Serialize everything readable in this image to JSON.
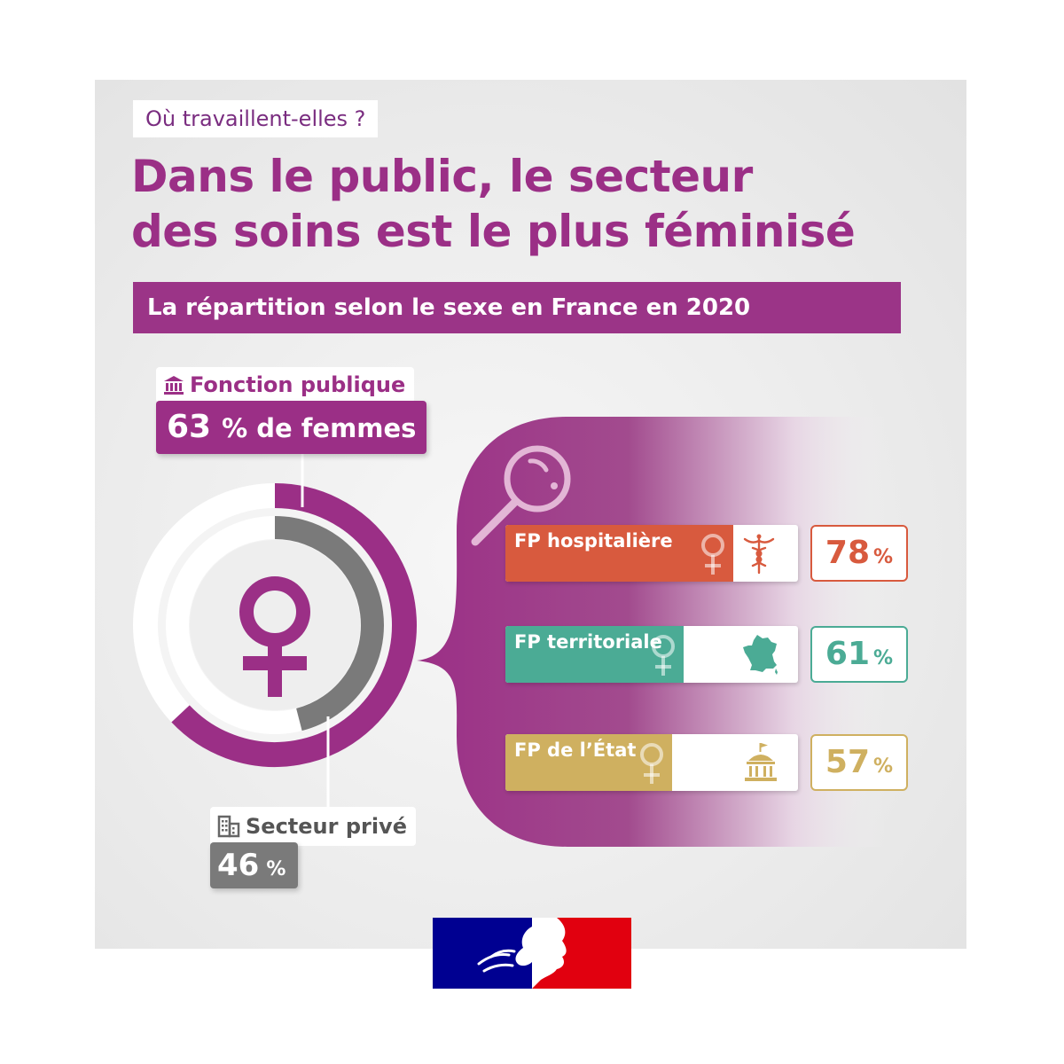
{
  "kicker": "Où travaillent-elles ?",
  "title_lines": [
    "Dans le public, le secteur",
    "des soins est le plus féminisé"
  ],
  "subtitle": "La répartition selon le sexe en France en 2020",
  "colors": {
    "purple": "#9b2f86",
    "gray_ring": "#7a7a7a",
    "hospitaliere": "#d85a3e",
    "territoriale": "#4bab95",
    "etat": "#cfb060"
  },
  "public": {
    "icon": "government-building-icon",
    "label": "Fonction publique",
    "value": "63",
    "value_suffix": "% de femmes"
  },
  "private": {
    "icon": "office-building-icon",
    "label": "Secteur privé",
    "value": "46",
    "value_suffix": "%"
  },
  "chart_data": {
    "type": "donut_and_bar",
    "rings": [
      {
        "name": "Fonction publique",
        "value": 63,
        "unit": "%"
      },
      {
        "name": "Secteur privé",
        "value": 46,
        "unit": "%"
      }
    ],
    "categories": [
      "FP hospitalière",
      "FP territoriale",
      "FP de l’État"
    ],
    "values": [
      78,
      61,
      57
    ],
    "icons": [
      "caduceus-icon",
      "france-map-icon",
      "government-building-icon"
    ],
    "unit": "%"
  },
  "bars": [
    {
      "label": "FP hospitalière",
      "value": "78",
      "unit": "%",
      "icon": "caduceus-icon"
    },
    {
      "label": "FP territoriale",
      "value": "61",
      "unit": "%",
      "icon": "france-map-icon"
    },
    {
      "label": "FP de l’État",
      "value": "57",
      "unit": "%",
      "icon": "government-building-icon"
    }
  ],
  "logo": {
    "icon": "marianne-logo-icon"
  }
}
